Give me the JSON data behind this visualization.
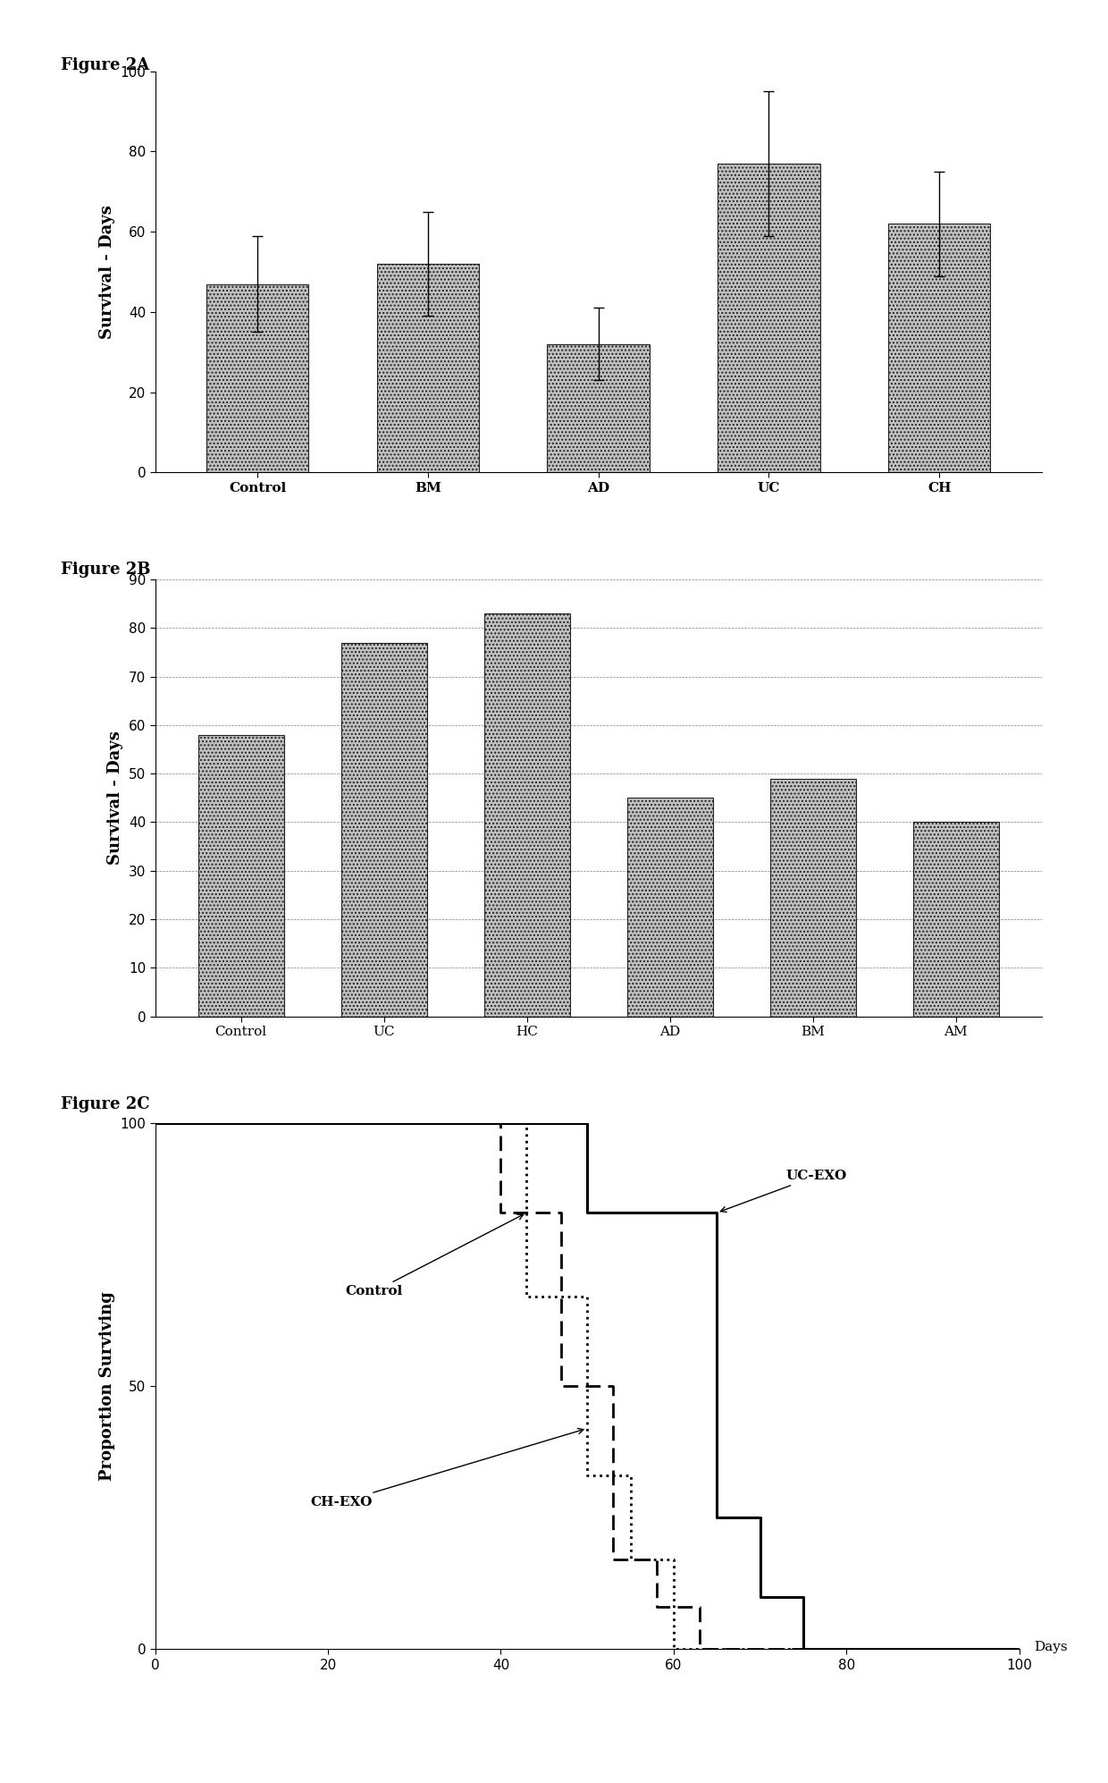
{
  "fig2A": {
    "categories": [
      "Control",
      "BM",
      "AD",
      "UC",
      "CH"
    ],
    "values": [
      47,
      52,
      32,
      77,
      62
    ],
    "errors": [
      12,
      13,
      9,
      18,
      13
    ],
    "ylabel": "Survival - Days",
    "ylim": [
      0,
      100
    ],
    "yticks": [
      0,
      20,
      40,
      60,
      80,
      100
    ],
    "title": "Figure 2A"
  },
  "fig2B": {
    "categories": [
      "Control",
      "UC",
      "HC",
      "AD",
      "BM",
      "AM"
    ],
    "values": [
      58,
      77,
      83,
      45,
      49,
      40
    ],
    "ylabel": "Survival - Days",
    "ylim": [
      0,
      90
    ],
    "yticks": [
      0,
      10,
      20,
      30,
      40,
      50,
      60,
      70,
      80,
      90
    ],
    "title": "Figure 2B"
  },
  "fig2C": {
    "title": "Figure 2C",
    "xlabel": "Days",
    "ylabel": "Proportion Surviving",
    "xlim": [
      0,
      100
    ],
    "ylim": [
      0,
      100
    ],
    "xticks": [
      0,
      20,
      40,
      60,
      80,
      100
    ],
    "yticks": [
      0,
      50,
      100
    ],
    "uc_exo_x": [
      0,
      50,
      65,
      70,
      75
    ],
    "uc_exo_y": [
      100,
      100,
      83,
      25,
      10
    ],
    "control_x": [
      0,
      40,
      47,
      53,
      58,
      63
    ],
    "control_y": [
      100,
      100,
      83,
      50,
      17,
      0
    ],
    "ch_exo_x": [
      0,
      43,
      50,
      55,
      60
    ],
    "ch_exo_y": [
      100,
      100,
      67,
      33,
      0
    ]
  },
  "bar_color": "#c0c0c0",
  "bar_edgecolor": "#222222",
  "background": "#ffffff",
  "label_fontsize": 13,
  "tick_fontsize": 11,
  "title_fontsize": 13,
  "annotation_fontsize": 11
}
